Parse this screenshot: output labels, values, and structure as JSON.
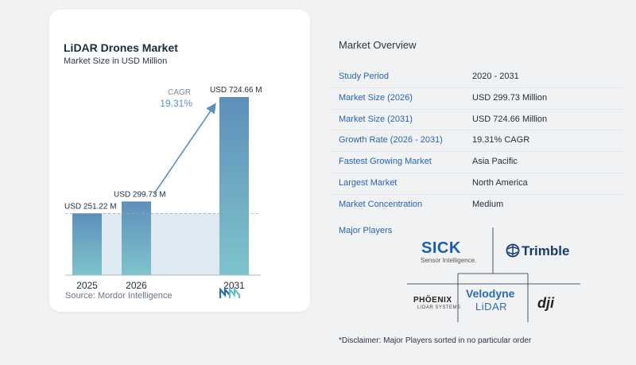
{
  "chart_data": {
    "type": "bar",
    "title": "LiDAR Drones Market",
    "subtitle": "Market Size in USD Million",
    "categories": [
      "2025",
      "2026",
      "2031"
    ],
    "values": [
      251.22,
      299.73,
      724.66
    ],
    "data_labels": [
      "USD 251.22 M",
      "USD 299.73 M",
      "USD 724.66 M"
    ],
    "cagr_label": "CAGR",
    "cagr_value": "19.31%",
    "colors": {
      "bar_top": "#5e8fba",
      "bar_bottom": "#7ec4cc",
      "arrow": "#5b8fc0",
      "band": "#dfe9f2",
      "baseline": "#b0b8c2"
    },
    "source": "Source:  Mordor Intelligence"
  },
  "overview": {
    "title": "Market Overview",
    "rows": [
      {
        "label": "Study Period",
        "value": "2020 - 2031"
      },
      {
        "label": "Market Size (2026)",
        "value": "USD 299.73 Million"
      },
      {
        "label": "Market Size (2031)",
        "value": "USD 724.66 Million"
      },
      {
        "label": "Growth Rate (2026 - 2031)",
        "value": "19.31% CAGR"
      },
      {
        "label": "Fastest Growing Market",
        "value": "Asia Pacific"
      },
      {
        "label": "Largest Market",
        "value": "North America"
      },
      {
        "label": "Market Concentration",
        "value": "Medium"
      }
    ],
    "players_label": "Major Players",
    "players": {
      "sick": "SICK",
      "sick_tag": "Sensor Intelligence.",
      "trimble": "Trimble",
      "phoenix": "PHÖENIX",
      "phoenix_tag": "LIDAR SYSTEMS",
      "velodyne": "Velodyne",
      "velodyne_tag": "LiDAR",
      "dji": "dji"
    },
    "disclaimer": "*Disclaimer: Major Players sorted in no particular order"
  }
}
